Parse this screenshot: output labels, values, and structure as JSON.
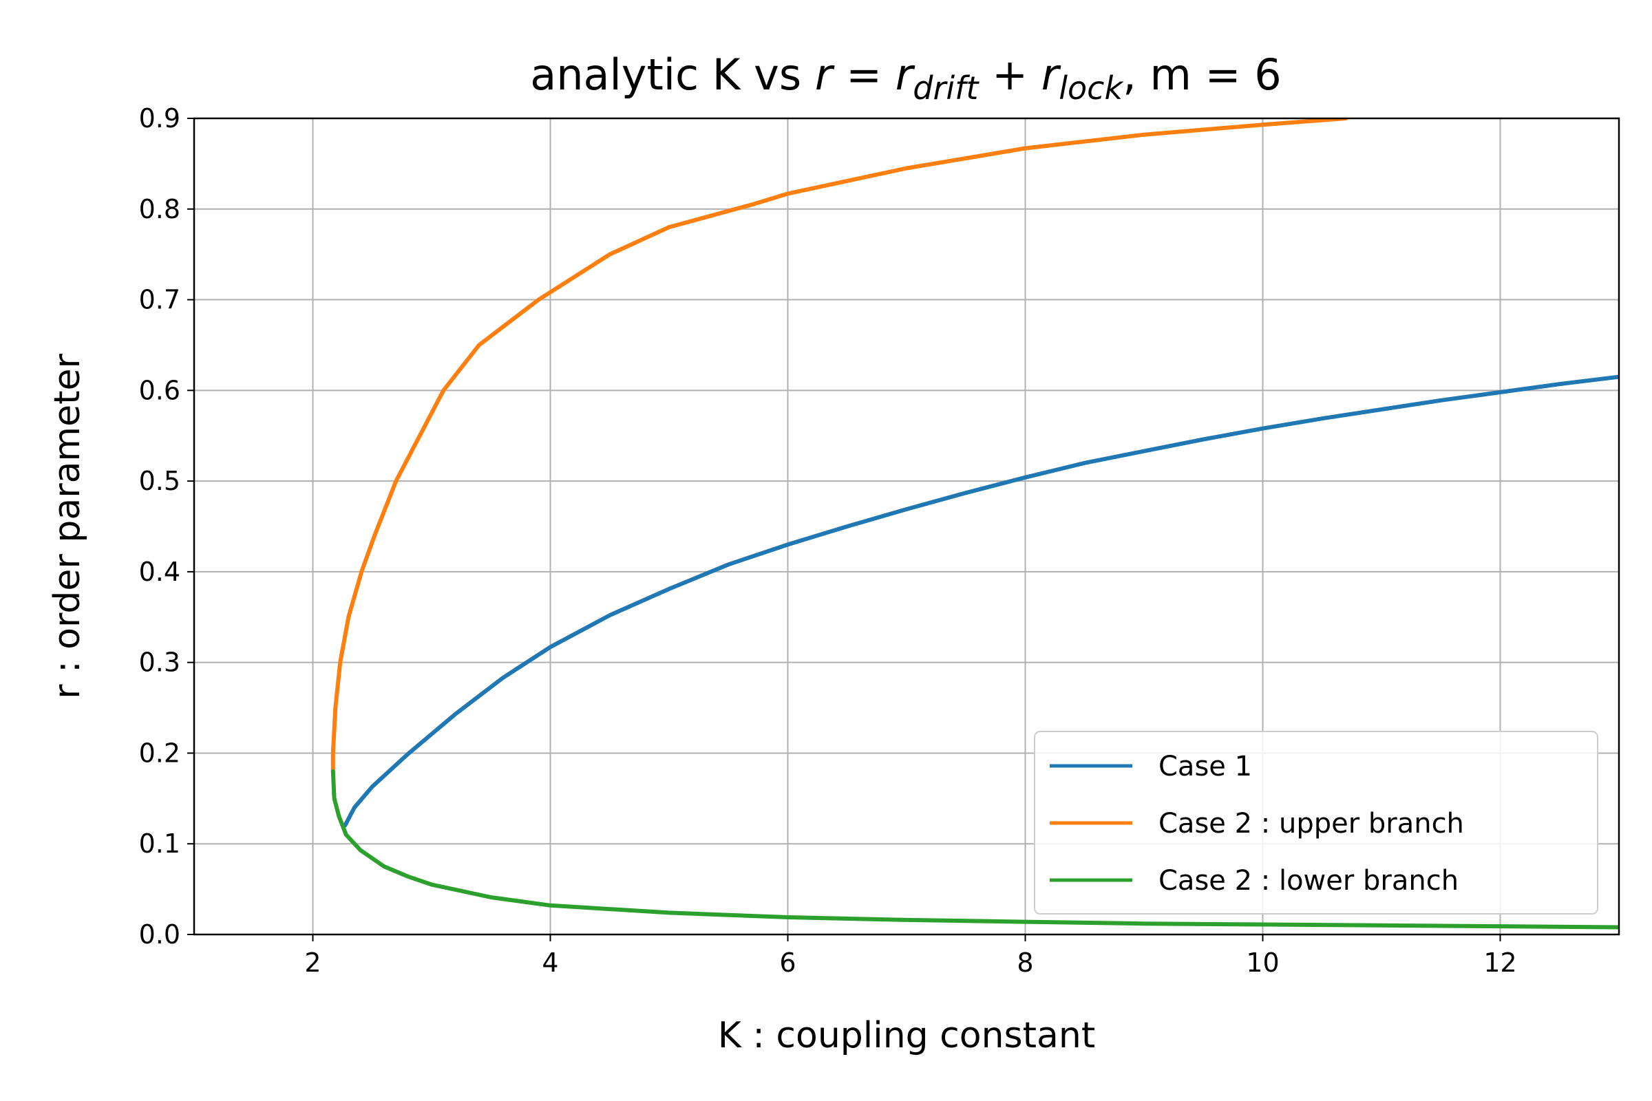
{
  "chart_data": {
    "type": "line",
    "title": {
      "prefix": "analytic K vs ",
      "r": "r",
      "eq": " = ",
      "r_drift": "r",
      "sub_drift": "drift",
      "plus": " + ",
      "r_lock": "r",
      "sub_lock": "lock",
      "suffix": ", m = 6"
    },
    "xlabel": "K : coupling constant",
    "ylabel": "r : order parameter",
    "xlim": [
      1,
      13
    ],
    "ylim": [
      0,
      0.9
    ],
    "xticks": [
      2,
      4,
      6,
      8,
      10,
      12
    ],
    "yticks": [
      0.0,
      0.1,
      0.2,
      0.3,
      0.4,
      0.5,
      0.6,
      0.7,
      0.8,
      0.9
    ],
    "xtick_labels": [
      "2",
      "4",
      "6",
      "8",
      "10",
      "12"
    ],
    "ytick_labels": [
      "0.0",
      "0.1",
      "0.2",
      "0.3",
      "0.4",
      "0.5",
      "0.6",
      "0.7",
      "0.8",
      "0.9"
    ],
    "grid": true,
    "legend_position": "lower-right",
    "series": [
      {
        "name": "Case 1",
        "color": "#1f77b4",
        "points": [
          [
            2.27,
            0.12
          ],
          [
            2.35,
            0.14
          ],
          [
            2.5,
            0.163
          ],
          [
            2.8,
            0.199
          ],
          [
            3.2,
            0.243
          ],
          [
            3.6,
            0.283
          ],
          [
            4.0,
            0.317
          ],
          [
            4.5,
            0.352
          ],
          [
            5.0,
            0.381
          ],
          [
            5.5,
            0.408
          ],
          [
            6.0,
            0.43
          ],
          [
            6.5,
            0.45
          ],
          [
            7.0,
            0.469
          ],
          [
            7.5,
            0.487
          ],
          [
            8.0,
            0.504
          ],
          [
            8.5,
            0.52
          ],
          [
            9.0,
            0.533
          ],
          [
            9.5,
            0.546
          ],
          [
            10.0,
            0.558
          ],
          [
            10.5,
            0.569
          ],
          [
            11.0,
            0.579
          ],
          [
            11.5,
            0.589
          ],
          [
            12.0,
            0.598
          ],
          [
            12.5,
            0.607
          ],
          [
            13.0,
            0.615
          ]
        ]
      },
      {
        "name": "Case 2 : upper branch",
        "color": "#ff7f0e",
        "points": [
          [
            2.17,
            0.18
          ],
          [
            2.17,
            0.2
          ],
          [
            2.19,
            0.25
          ],
          [
            2.23,
            0.3
          ],
          [
            2.3,
            0.35
          ],
          [
            2.41,
            0.4
          ],
          [
            2.52,
            0.44
          ],
          [
            2.7,
            0.5
          ],
          [
            2.9,
            0.55
          ],
          [
            3.1,
            0.6
          ],
          [
            3.4,
            0.65
          ],
          [
            3.9,
            0.7
          ],
          [
            4.5,
            0.75
          ],
          [
            5.0,
            0.78
          ],
          [
            5.7,
            0.805
          ],
          [
            6.0,
            0.817
          ],
          [
            7.0,
            0.845
          ],
          [
            8.0,
            0.867
          ],
          [
            9.0,
            0.882
          ],
          [
            10.0,
            0.893
          ],
          [
            10.7,
            0.9
          ]
        ]
      },
      {
        "name": "Case 2 : lower branch",
        "color": "#2ca02c",
        "points": [
          [
            2.17,
            0.18
          ],
          [
            2.18,
            0.15
          ],
          [
            2.22,
            0.13
          ],
          [
            2.28,
            0.11
          ],
          [
            2.4,
            0.093
          ],
          [
            2.6,
            0.075
          ],
          [
            2.8,
            0.064
          ],
          [
            3.0,
            0.055
          ],
          [
            3.5,
            0.041
          ],
          [
            4.0,
            0.032
          ],
          [
            5.0,
            0.024
          ],
          [
            6.0,
            0.019
          ],
          [
            7.0,
            0.016
          ],
          [
            8.0,
            0.014
          ],
          [
            9.0,
            0.012
          ],
          [
            10.0,
            0.011
          ],
          [
            11.0,
            0.01
          ],
          [
            12.0,
            0.009
          ],
          [
            13.0,
            0.008
          ]
        ]
      }
    ]
  }
}
